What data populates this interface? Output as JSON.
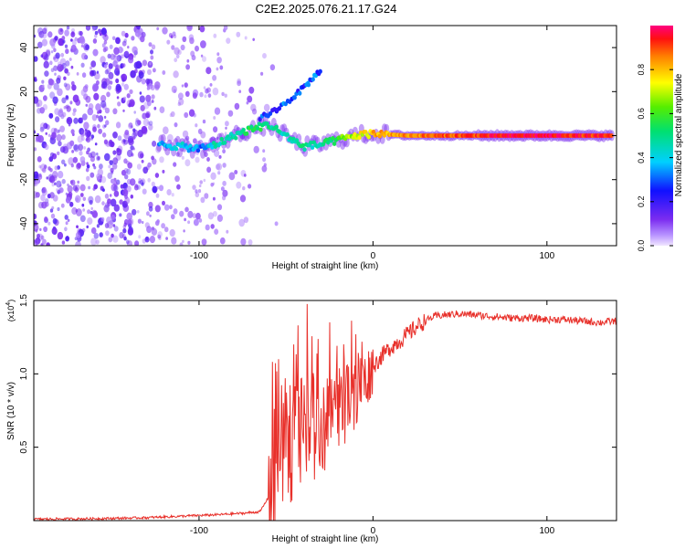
{
  "title": "C2E2.2025.076.21.17.G24",
  "chart_data": [
    {
      "type": "heatmap",
      "xlabel": "Height of straight line (km)",
      "ylabel": "Frequency (Hz)",
      "xlim": [
        -195,
        140
      ],
      "ylim": [
        -50,
        50
      ],
      "xticks": [
        -100,
        0,
        100
      ],
      "yticks": [
        -40,
        -20,
        0,
        20,
        40
      ],
      "colorbar": {
        "label": "Normalized spectral amplitude",
        "range": [
          0,
          1
        ],
        "ticks": [
          "0.0",
          "0.2",
          "0.4",
          "0.6",
          "0.8"
        ]
      },
      "ridge": [
        {
          "x": -123,
          "f": -4,
          "a": 0.35
        },
        {
          "x": -110,
          "f": -5,
          "a": 0.4
        },
        {
          "x": -100,
          "f": -6,
          "a": 0.3
        },
        {
          "x": -90,
          "f": -4,
          "a": 0.45
        },
        {
          "x": -80,
          "f": 0,
          "a": 0.45
        },
        {
          "x": -70,
          "f": 3,
          "a": 0.55
        },
        {
          "x": -60,
          "f": 5,
          "a": 0.5
        },
        {
          "x": -50,
          "f": 0,
          "a": 0.45
        },
        {
          "x": -40,
          "f": -5,
          "a": 0.5
        },
        {
          "x": -30,
          "f": -4,
          "a": 0.45
        },
        {
          "x": -20,
          "f": -2,
          "a": 0.6
        },
        {
          "x": -10,
          "f": 0,
          "a": 0.7
        },
        {
          "x": 0,
          "f": 1,
          "a": 0.8
        },
        {
          "x": 20,
          "f": 0,
          "a": 0.85
        },
        {
          "x": 60,
          "f": 0,
          "a": 0.92
        },
        {
          "x": 100,
          "f": 0,
          "a": 0.97
        },
        {
          "x": 138,
          "f": 0,
          "a": 0.9
        }
      ],
      "upper_branch": [
        {
          "x": -65,
          "f": 8
        },
        {
          "x": -55,
          "f": 12
        },
        {
          "x": -45,
          "f": 18
        },
        {
          "x": -37,
          "f": 24
        },
        {
          "x": -30,
          "f": 30
        }
      ]
    },
    {
      "type": "line",
      "xlabel": "Height of straight line (km)",
      "ylabel": "SNR (10 * v/v)",
      "y_multiplier": "(x10^4)",
      "xlim": [
        -195,
        140
      ],
      "ylim": [
        0,
        1.5
      ],
      "xticks": [
        -100,
        0,
        100
      ],
      "yticks": [
        0.5,
        1.0,
        1.5
      ],
      "color": "#e8302a",
      "series": [
        {
          "x": [
            -195,
            -170,
            -150,
            -130,
            -110,
            -90,
            -75,
            -65,
            -58,
            -52,
            -46,
            -40,
            -34,
            -28,
            -22,
            -16,
            -10,
            -4,
            0,
            5,
            10,
            15,
            20,
            25,
            30,
            35,
            40,
            50,
            60,
            70,
            80,
            90,
            100,
            110,
            120,
            130,
            140
          ],
          "y": [
            0.01,
            0.012,
            0.015,
            0.02,
            0.03,
            0.04,
            0.05,
            0.06,
            0.2,
            0.45,
            0.6,
            0.55,
            0.65,
            0.6,
            0.72,
            0.8,
            0.88,
            0.96,
            1.05,
            1.12,
            1.18,
            1.22,
            1.27,
            1.32,
            1.36,
            1.39,
            1.4,
            1.41,
            1.4,
            1.39,
            1.38,
            1.38,
            1.37,
            1.37,
            1.36,
            1.35,
            1.36
          ]
        }
      ]
    }
  ]
}
